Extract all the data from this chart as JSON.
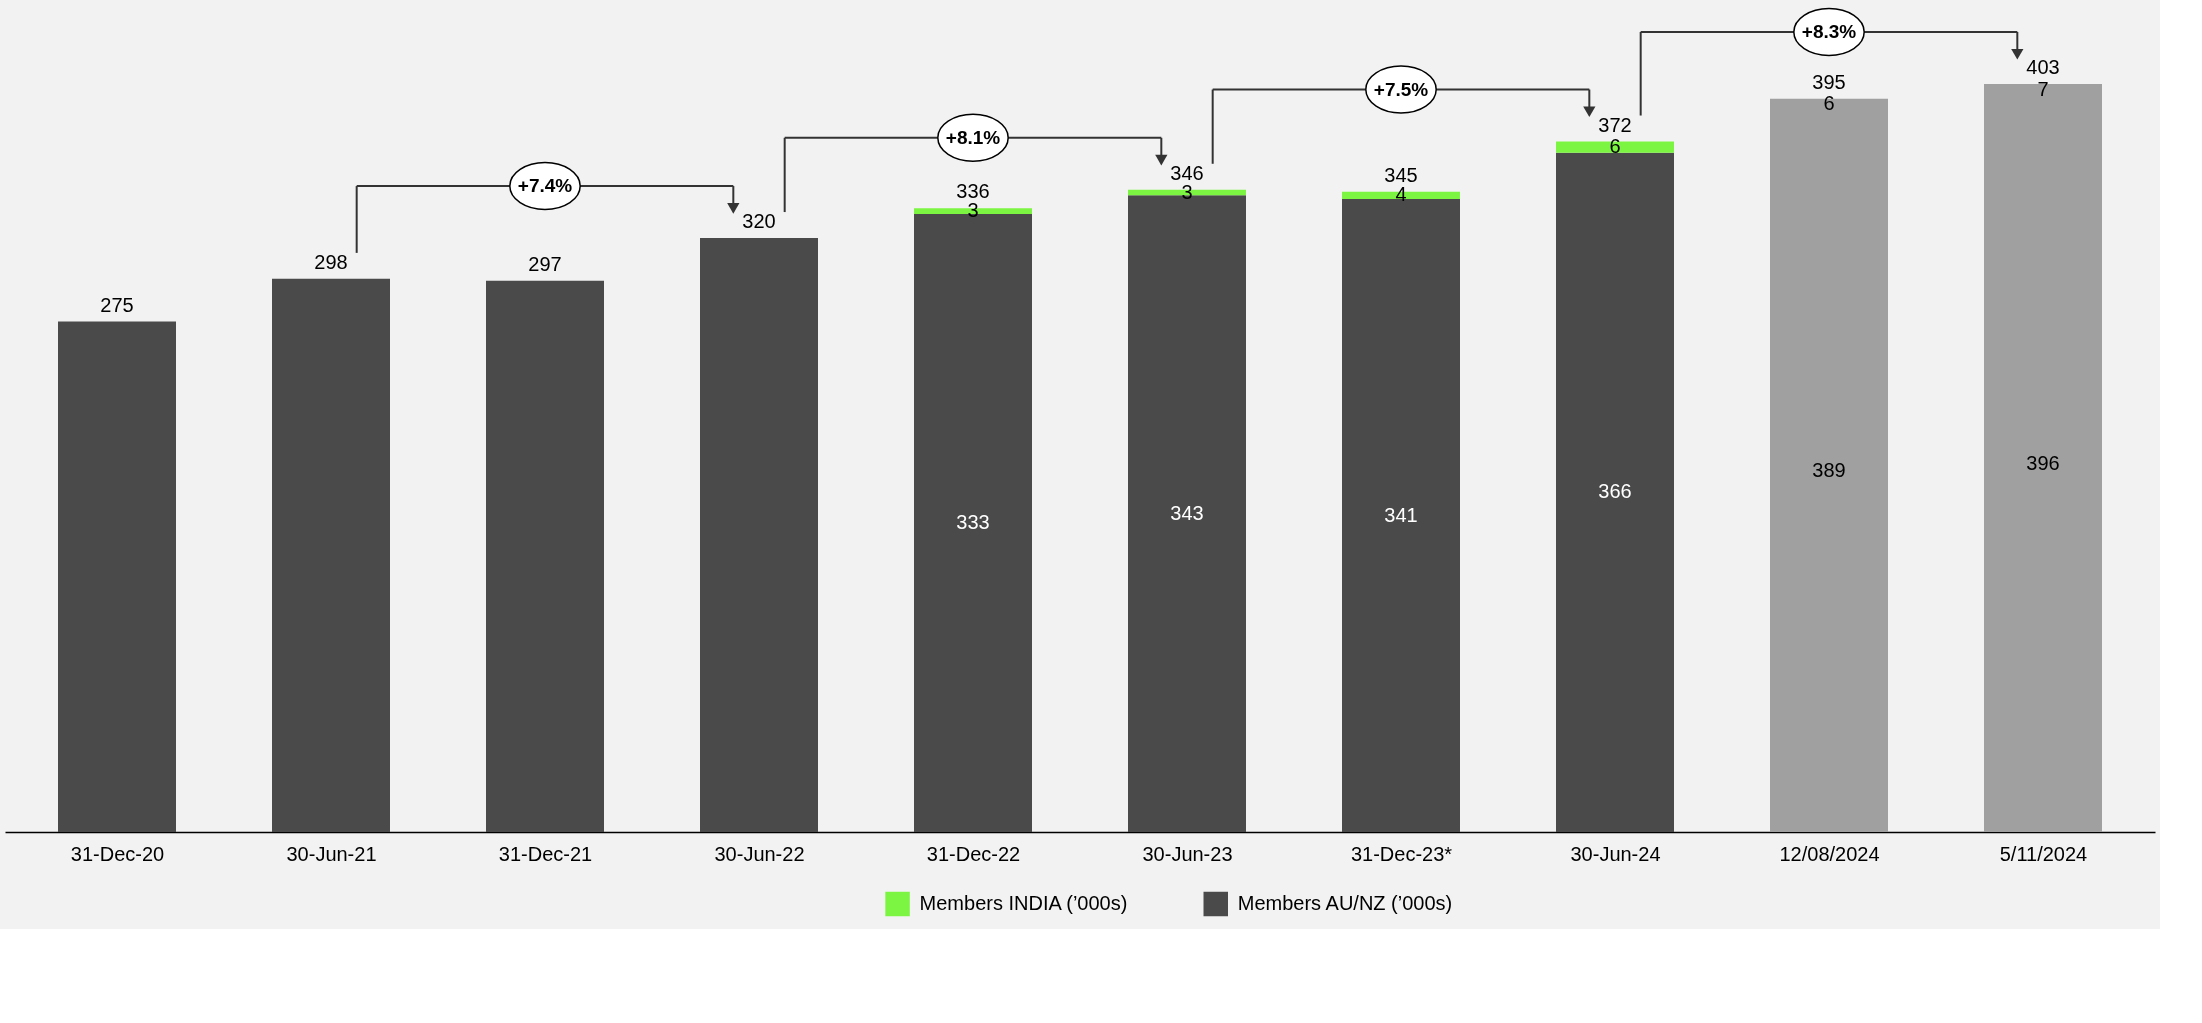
{
  "chart_data": {
    "type": "bar",
    "stacked": true,
    "categories": [
      "31-Dec-20",
      "30-Jun-21",
      "31-Dec-21",
      "30-Jun-22",
      "31-Dec-22",
      "30-Jun-23",
      "31-Dec-23*",
      "30-Jun-24",
      "12/08/2024",
      "5/11/2024"
    ],
    "series": [
      {
        "name": "Members AU/NZ (’000s)",
        "colors": [
          "#4a4a4a",
          "#4a4a4a",
          "#4a4a4a",
          "#4a4a4a",
          "#4a4a4a",
          "#4a4a4a",
          "#4a4a4a",
          "#4a4a4a",
          "#a0a0a0",
          "#a0a0a0"
        ],
        "values": [
          275,
          298,
          297,
          320,
          333,
          343,
          341,
          366,
          389,
          396
        ],
        "value_labels": [
          null,
          null,
          null,
          null,
          "333",
          "343",
          "341",
          "366",
          "389",
          "396"
        ]
      },
      {
        "name": "Members INDIA (’000s)",
        "colors": [
          "#7cf542",
          "#7cf542",
          "#7cf542",
          "#7cf542",
          "#7cf542",
          "#7cf542",
          "#7cf542",
          "#7cf542",
          "#a0a0a0",
          "#a0a0a0"
        ],
        "values": [
          null,
          null,
          null,
          null,
          3,
          3,
          4,
          6,
          6,
          7
        ],
        "value_labels": [
          null,
          null,
          null,
          null,
          "3",
          "3",
          "4",
          "6",
          "6",
          "7"
        ]
      }
    ],
    "totals": [
      "275",
      "298",
      "297",
      "320",
      "336",
      "346",
      "345",
      "372",
      "395",
      "403"
    ],
    "annotations": [
      "+7.4%",
      "+8.1%",
      "+7.5%",
      "+8.3%"
    ],
    "legend": "bottom",
    "grid": false
  }
}
